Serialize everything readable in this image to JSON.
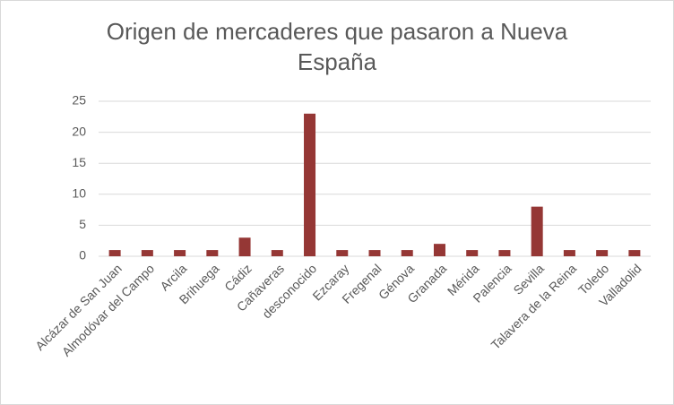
{
  "chart_data": {
    "type": "bar",
    "title": "Origen de mercaderes que pasaron a Nueva España",
    "categories": [
      "Alcázar de San Juan",
      "Almodóvar del Campo",
      "Arcila",
      "Brihuega",
      "Cádiz",
      "Cañaveras",
      "desconocido",
      "Ezcaray",
      "Fregenal",
      "Génova",
      "Granada",
      "Mérida",
      "Palencia",
      "Sevilla",
      "Talavera de la Reina",
      "Toledo",
      "Valladolid"
    ],
    "values": [
      1,
      1,
      1,
      1,
      3,
      1,
      23,
      1,
      1,
      1,
      2,
      1,
      1,
      8,
      1,
      1,
      1
    ],
    "color": "#953735",
    "ylim": [
      0,
      25
    ],
    "yticks": [
      0,
      5,
      10,
      15,
      20,
      25
    ],
    "grid": true
  }
}
